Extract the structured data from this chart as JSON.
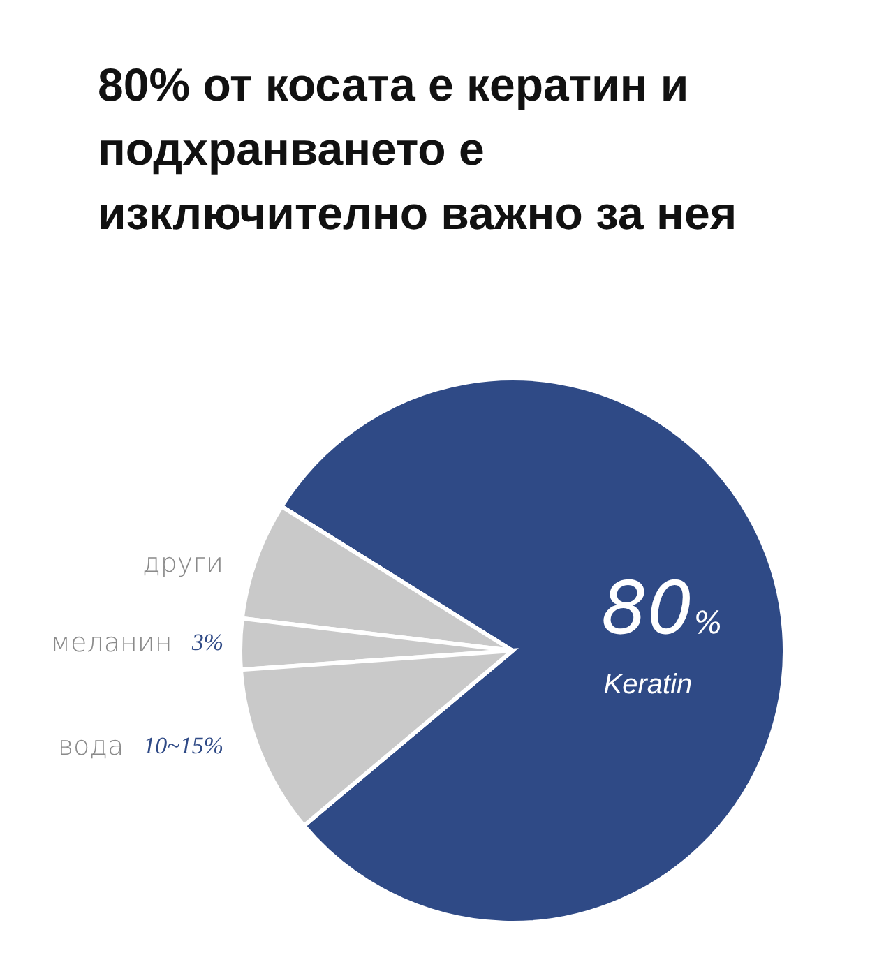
{
  "chart_data": {
    "type": "pie",
    "title": "80% от косата е кератин и подхранването е изключително важно за нея",
    "categories": [
      "Keratin",
      "други",
      "меланин",
      "вода"
    ],
    "values": [
      80,
      7,
      3,
      10
    ],
    "value_labels": [
      "80%",
      null,
      "3%",
      "10~15%"
    ],
    "colors": [
      "#2f4a86",
      "#c9c9c9",
      "#c9c9c9",
      "#c9c9c9"
    ]
  }
}
